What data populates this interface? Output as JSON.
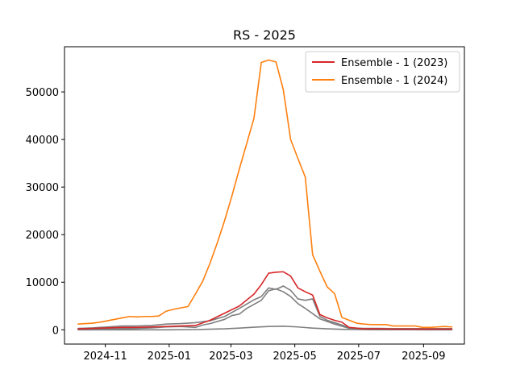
{
  "chart_data": {
    "type": "line",
    "title": "RS - 2025",
    "xlabel": "",
    "ylabel": "",
    "x_axis": "date",
    "xlim": [
      "2024-09-23",
      "2025-10-10"
    ],
    "ylim": [
      -3000,
      59500
    ],
    "x_ticks": [
      "2024-11-01",
      "2025-01-01",
      "2025-03-01",
      "2025-05-01",
      "2025-07-01",
      "2025-09-01"
    ],
    "x_tick_labels": [
      "2024-11",
      "2025-01",
      "2025-03",
      "2025-05",
      "2025-07",
      "2025-09"
    ],
    "y_ticks": [
      0,
      10000,
      20000,
      30000,
      40000,
      50000
    ],
    "y_tick_labels": [
      "0",
      "10000",
      "20000",
      "30000",
      "40000",
      "50000"
    ],
    "grid": false,
    "legend_position": "top-right",
    "series": [
      {
        "name": "Ensemble - 1 (2023)",
        "color": "#d62728",
        "in_legend": true,
        "points": [
          [
            "2024-10-06",
            200
          ],
          [
            "2024-10-20",
            300
          ],
          [
            "2024-11-03",
            400
          ],
          [
            "2024-11-17",
            500
          ],
          [
            "2024-12-01",
            500
          ],
          [
            "2024-12-15",
            600
          ],
          [
            "2024-12-29",
            700
          ],
          [
            "2025-01-12",
            800
          ],
          [
            "2025-01-26",
            900
          ],
          [
            "2025-02-09",
            2000
          ],
          [
            "2025-02-23",
            3500
          ],
          [
            "2025-03-09",
            5000
          ],
          [
            "2025-03-23",
            7500
          ],
          [
            "2025-03-30",
            9500
          ],
          [
            "2025-04-06",
            11900
          ],
          [
            "2025-04-13",
            12100
          ],
          [
            "2025-04-20",
            12200
          ],
          [
            "2025-04-27",
            11300
          ],
          [
            "2025-05-04",
            8800
          ],
          [
            "2025-05-11",
            8000
          ],
          [
            "2025-05-18",
            7300
          ],
          [
            "2025-05-25",
            3200
          ],
          [
            "2025-06-01",
            2500
          ],
          [
            "2025-06-08",
            2000
          ],
          [
            "2025-06-15",
            1600
          ],
          [
            "2025-06-22",
            500
          ],
          [
            "2025-07-06",
            200
          ],
          [
            "2025-07-20",
            200
          ],
          [
            "2025-08-03",
            150
          ],
          [
            "2025-08-17",
            150
          ],
          [
            "2025-08-31",
            150
          ],
          [
            "2025-09-14",
            150
          ],
          [
            "2025-09-28",
            150
          ]
        ]
      },
      {
        "name": "Ensemble - 1 (2024)",
        "color": "#ff7f0e",
        "in_legend": true,
        "points": [
          [
            "2024-10-06",
            1200
          ],
          [
            "2024-10-13",
            1300
          ],
          [
            "2024-10-20",
            1400
          ],
          [
            "2024-10-27",
            1600
          ],
          [
            "2024-11-03",
            1900
          ],
          [
            "2024-11-10",
            2200
          ],
          [
            "2024-11-17",
            2500
          ],
          [
            "2024-11-24",
            2800
          ],
          [
            "2024-12-01",
            2700
          ],
          [
            "2024-12-08",
            2800
          ],
          [
            "2024-12-15",
            2800
          ],
          [
            "2024-12-22",
            2900
          ],
          [
            "2024-12-29",
            3900
          ],
          [
            "2025-01-05",
            4300
          ],
          [
            "2025-01-12",
            4600
          ],
          [
            "2025-01-19",
            4900
          ],
          [
            "2025-01-26",
            7500
          ],
          [
            "2025-02-02",
            10200
          ],
          [
            "2025-02-09",
            14000
          ],
          [
            "2025-02-16",
            18300
          ],
          [
            "2025-02-23",
            23000
          ],
          [
            "2025-03-02",
            28200
          ],
          [
            "2025-03-09",
            33800
          ],
          [
            "2025-03-16",
            39100
          ],
          [
            "2025-03-23",
            44500
          ],
          [
            "2025-03-30",
            56200
          ],
          [
            "2025-04-06",
            56700
          ],
          [
            "2025-04-13",
            56300
          ],
          [
            "2025-04-20",
            50500
          ],
          [
            "2025-04-27",
            40000
          ],
          [
            "2025-05-04",
            36000
          ],
          [
            "2025-05-11",
            32100
          ],
          [
            "2025-05-18",
            15800
          ],
          [
            "2025-05-25",
            12300
          ],
          [
            "2025-06-01",
            9000
          ],
          [
            "2025-06-08",
            7600
          ],
          [
            "2025-06-15",
            2600
          ],
          [
            "2025-06-22",
            2000
          ],
          [
            "2025-06-29",
            1400
          ],
          [
            "2025-07-06",
            1200
          ],
          [
            "2025-07-13",
            1100
          ],
          [
            "2025-07-20",
            1100
          ],
          [
            "2025-07-27",
            1100
          ],
          [
            "2025-08-03",
            800
          ],
          [
            "2025-08-10",
            800
          ],
          [
            "2025-08-17",
            800
          ],
          [
            "2025-08-24",
            800
          ],
          [
            "2025-08-31",
            500
          ],
          [
            "2025-09-07",
            500
          ],
          [
            "2025-09-14",
            600
          ],
          [
            "2025-09-21",
            700
          ],
          [
            "2025-09-28",
            600
          ]
        ]
      },
      {
        "name": "",
        "color": "#7f7f7f",
        "in_legend": false,
        "points": [
          [
            "2024-10-06",
            300
          ],
          [
            "2024-10-20",
            400
          ],
          [
            "2024-11-03",
            600
          ],
          [
            "2024-11-17",
            800
          ],
          [
            "2024-12-01",
            800
          ],
          [
            "2024-12-15",
            900
          ],
          [
            "2024-12-29",
            1200
          ],
          [
            "2025-01-12",
            1300
          ],
          [
            "2025-01-26",
            1500
          ],
          [
            "2025-02-09",
            1900
          ],
          [
            "2025-02-23",
            2800
          ],
          [
            "2025-03-09",
            4500
          ],
          [
            "2025-03-23",
            6300
          ],
          [
            "2025-03-30",
            7000
          ],
          [
            "2025-04-06",
            8800
          ],
          [
            "2025-04-13",
            8500
          ],
          [
            "2025-04-20",
            9200
          ],
          [
            "2025-04-27",
            8300
          ],
          [
            "2025-05-04",
            6500
          ],
          [
            "2025-05-11",
            6200
          ],
          [
            "2025-05-18",
            6500
          ],
          [
            "2025-05-25",
            2800
          ],
          [
            "2025-06-01",
            2000
          ],
          [
            "2025-06-08",
            1500
          ],
          [
            "2025-06-15",
            1000
          ],
          [
            "2025-06-22",
            400
          ],
          [
            "2025-07-06",
            300
          ],
          [
            "2025-07-20",
            300
          ],
          [
            "2025-08-03",
            250
          ],
          [
            "2025-08-17",
            250
          ],
          [
            "2025-08-31",
            250
          ],
          [
            "2025-09-14",
            250
          ],
          [
            "2025-09-28",
            250
          ]
        ]
      },
      {
        "name": "",
        "color": "#7f7f7f",
        "in_legend": false,
        "points": [
          [
            "2024-10-06",
            100
          ],
          [
            "2024-10-20",
            150
          ],
          [
            "2024-11-03",
            200
          ],
          [
            "2024-11-17",
            250
          ],
          [
            "2024-12-01",
            300
          ],
          [
            "2024-12-15",
            400
          ],
          [
            "2024-12-29",
            600
          ],
          [
            "2025-01-12",
            700
          ],
          [
            "2025-01-26",
            500
          ],
          [
            "2025-02-02",
            1000
          ],
          [
            "2025-02-09",
            1300
          ],
          [
            "2025-02-23",
            2200
          ],
          [
            "2025-03-02",
            3000
          ],
          [
            "2025-03-09",
            3300
          ],
          [
            "2025-03-16",
            4500
          ],
          [
            "2025-03-30",
            6200
          ],
          [
            "2025-04-06",
            8200
          ],
          [
            "2025-04-13",
            8600
          ],
          [
            "2025-04-20",
            8000
          ],
          [
            "2025-04-27",
            7000
          ],
          [
            "2025-05-04",
            5500
          ],
          [
            "2025-05-11",
            4500
          ],
          [
            "2025-05-25",
            2300
          ],
          [
            "2025-06-08",
            1200
          ],
          [
            "2025-06-22",
            300
          ],
          [
            "2025-07-06",
            200
          ],
          [
            "2025-07-20",
            150
          ],
          [
            "2025-08-03",
            150
          ],
          [
            "2025-08-17",
            150
          ],
          [
            "2025-08-31",
            150
          ],
          [
            "2025-09-14",
            150
          ],
          [
            "2025-09-28",
            150
          ]
        ]
      },
      {
        "name": "",
        "color": "#7f7f7f",
        "in_legend": false,
        "points": [
          [
            "2024-10-06",
            0
          ],
          [
            "2024-11-03",
            0
          ],
          [
            "2024-12-01",
            0
          ],
          [
            "2024-12-29",
            0
          ],
          [
            "2025-01-26",
            50
          ],
          [
            "2025-02-23",
            200
          ],
          [
            "2025-03-09",
            350
          ],
          [
            "2025-03-23",
            550
          ],
          [
            "2025-04-06",
            700
          ],
          [
            "2025-04-20",
            750
          ],
          [
            "2025-05-04",
            600
          ],
          [
            "2025-05-18",
            350
          ],
          [
            "2025-06-01",
            200
          ],
          [
            "2025-06-15",
            100
          ],
          [
            "2025-06-29",
            50
          ],
          [
            "2025-07-13",
            20
          ],
          [
            "2025-08-10",
            10
          ],
          [
            "2025-09-07",
            0
          ],
          [
            "2025-09-28",
            0
          ]
        ]
      }
    ]
  }
}
